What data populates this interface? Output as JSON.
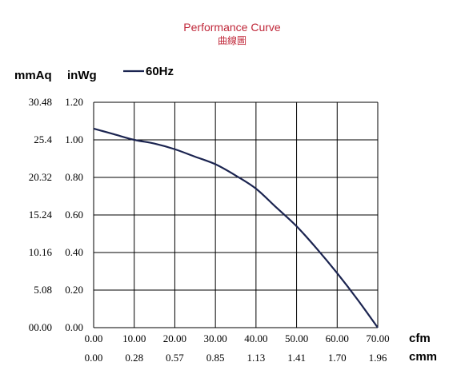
{
  "title": "Performance Curve",
  "subtitle": "曲線圖",
  "colors": {
    "title": "#c0283a",
    "curve": "#1b2450",
    "grid": "#000000",
    "text": "#000000"
  },
  "legend": {
    "label": "60Hz"
  },
  "axes": {
    "y_unit_left": "mmAq",
    "y_unit_right": "inWg",
    "x_unit_top": "cfm",
    "x_unit_bottom": "cmm"
  },
  "chart_data": {
    "type": "line",
    "title": "Performance Curve",
    "subtitle": "曲線圖",
    "xlabel": "cfm",
    "xlabel_secondary": "cmm",
    "ylabel": "inWg",
    "ylabel_secondary": "mmAq",
    "xlim": [
      0,
      70
    ],
    "ylim": [
      0,
      1.2
    ],
    "x_ticks": [
      "0.00",
      "10.00",
      "20.00",
      "30.00",
      "40.00",
      "50.00",
      "60.00",
      "70.00"
    ],
    "x_ticks_secondary": [
      "0.00",
      "0.28",
      "0.57",
      "0.85",
      "1.13",
      "1.41",
      "1.70",
      "1.96"
    ],
    "y_ticks": [
      "0.00",
      "0.20",
      "0.40",
      "0.60",
      "0.80",
      "1.00",
      "1.20"
    ],
    "y_ticks_secondary": [
      "00.00",
      "5.08",
      "10.16",
      "15.24",
      "20.32",
      "25.4",
      "30.48"
    ],
    "grid": true,
    "legend_position": "top-left",
    "series": [
      {
        "name": "60Hz",
        "x": [
          0,
          5,
          10,
          15,
          20,
          25,
          30,
          35,
          40,
          45,
          50,
          55,
          60,
          65,
          70
        ],
        "y": [
          1.06,
          1.03,
          1.0,
          0.98,
          0.95,
          0.91,
          0.87,
          0.81,
          0.74,
          0.64,
          0.54,
          0.42,
          0.29,
          0.15,
          0.0
        ]
      }
    ]
  }
}
